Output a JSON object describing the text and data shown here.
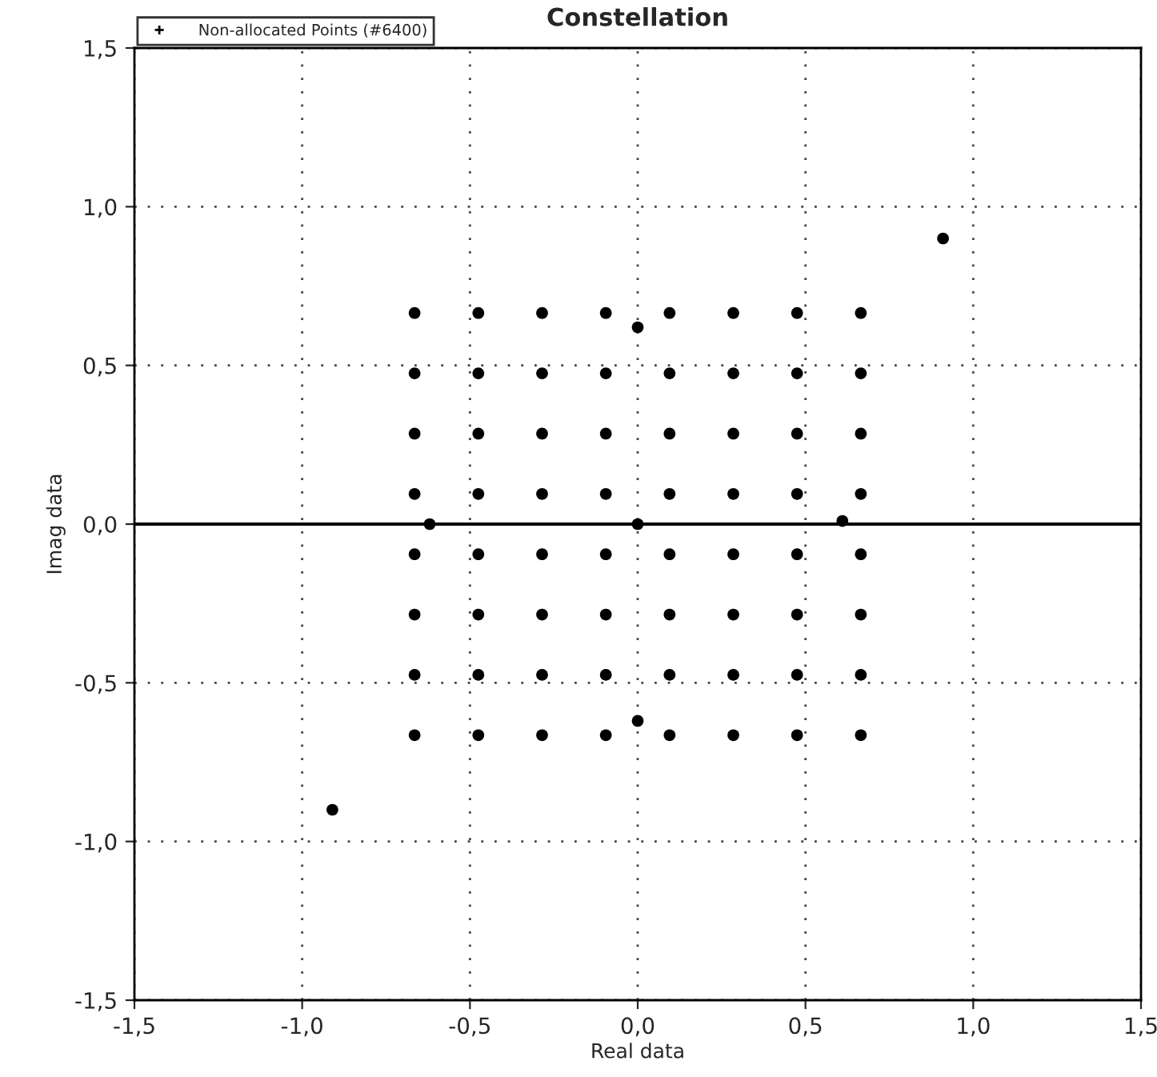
{
  "chart_data": {
    "type": "scatter",
    "title": "Constellation",
    "xlabel": "Real data",
    "ylabel": "Imag data",
    "series": [
      {
        "name": "Non-allocated Points (#6400)",
        "color": "#000000",
        "x": [
          -0.665,
          -0.475,
          -0.285,
          -0.095,
          0.095,
          0.285,
          0.475,
          0.665,
          -0.665,
          -0.475,
          -0.285,
          -0.095,
          0.095,
          0.285,
          0.475,
          0.665,
          -0.665,
          -0.475,
          -0.285,
          -0.095,
          0.095,
          0.285,
          0.475,
          0.665,
          -0.665,
          -0.475,
          -0.285,
          -0.095,
          0.095,
          0.285,
          0.475,
          0.665,
          -0.665,
          -0.475,
          -0.285,
          -0.095,
          0.095,
          0.285,
          0.475,
          0.665,
          -0.665,
          -0.475,
          -0.285,
          -0.095,
          0.095,
          0.285,
          0.475,
          0.665,
          -0.665,
          -0.475,
          -0.285,
          -0.095,
          0.095,
          0.285,
          0.475,
          0.665,
          -0.665,
          -0.475,
          -0.285,
          -0.095,
          0.095,
          0.285,
          0.475,
          0.665,
          0.91,
          -0.91,
          0.0,
          0.0,
          -0.62,
          0.61,
          0.0
        ],
        "values": [
          0.665,
          0.665,
          0.665,
          0.665,
          0.665,
          0.665,
          0.665,
          0.665,
          0.475,
          0.475,
          0.475,
          0.475,
          0.475,
          0.475,
          0.475,
          0.475,
          0.285,
          0.285,
          0.285,
          0.285,
          0.285,
          0.285,
          0.285,
          0.285,
          0.095,
          0.095,
          0.095,
          0.095,
          0.095,
          0.095,
          0.095,
          0.095,
          -0.095,
          -0.095,
          -0.095,
          -0.095,
          -0.095,
          -0.095,
          -0.095,
          -0.095,
          -0.285,
          -0.285,
          -0.285,
          -0.285,
          -0.285,
          -0.285,
          -0.285,
          -0.285,
          -0.475,
          -0.475,
          -0.475,
          -0.475,
          -0.475,
          -0.475,
          -0.475,
          -0.475,
          -0.665,
          -0.665,
          -0.665,
          -0.665,
          -0.665,
          -0.665,
          -0.665,
          -0.665,
          0.9,
          -0.9,
          0.62,
          -0.62,
          0.0,
          0.01,
          0.0
        ]
      }
    ],
    "xlim": [
      -1.5,
      1.5
    ],
    "ylim": [
      -1.5,
      1.5
    ],
    "xticks": [
      {
        "value": -1.5,
        "label": "-1,5"
      },
      {
        "value": -1.0,
        "label": "-1,0"
      },
      {
        "value": -0.5,
        "label": "-0,5"
      },
      {
        "value": 0.0,
        "label": "0,0"
      },
      {
        "value": 0.5,
        "label": "0,5"
      },
      {
        "value": 1.0,
        "label": "1,0"
      },
      {
        "value": 1.5,
        "label": "1,5"
      }
    ],
    "yticks": [
      {
        "value": -1.5,
        "label": "-1,5"
      },
      {
        "value": -1.0,
        "label": "-1,0"
      },
      {
        "value": -0.5,
        "label": "-0,5"
      },
      {
        "value": 0.0,
        "label": "0,0"
      },
      {
        "value": 0.5,
        "label": "0,5"
      },
      {
        "value": 1.0,
        "label": "1,0"
      },
      {
        "value": 1.5,
        "label": "1,5"
      }
    ],
    "ref_lines": [
      {
        "axis": "y",
        "value": 0,
        "color": "#000000",
        "line_style": "solid"
      }
    ],
    "grid": true,
    "legend": "top left",
    "marker": "circle"
  }
}
